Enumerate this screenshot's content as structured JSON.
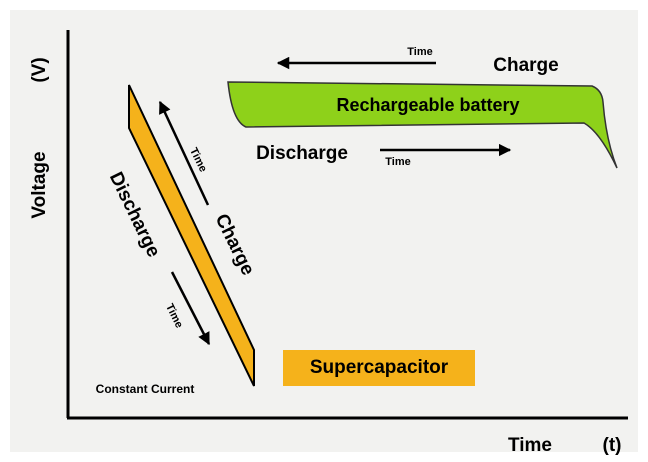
{
  "axes": {
    "y_label": "Voltage",
    "y_unit": "(V)",
    "x_label": "Time",
    "x_unit": "(t)"
  },
  "battery": {
    "label": "Rechargeable battery",
    "charge": "Charge",
    "charge_time": "Time",
    "discharge": "Discharge",
    "discharge_time": "Time"
  },
  "supercapacitor": {
    "label": "Supercapacitor",
    "charge": "Charge",
    "charge_time": "Time",
    "discharge": "Discharge",
    "discharge_time": "Time",
    "note": "Constant Current"
  }
}
